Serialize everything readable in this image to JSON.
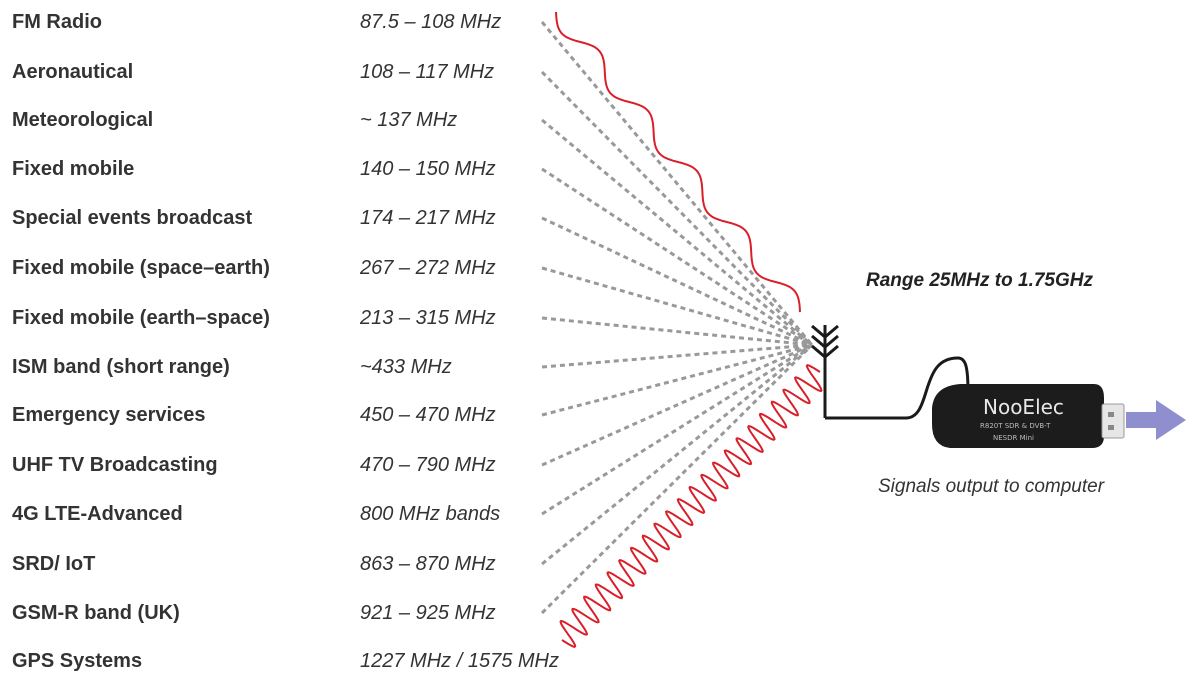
{
  "bands": [
    {
      "service": "FM Radio",
      "frequency": "87.5 – 108 MHz"
    },
    {
      "service": "Aeronautical",
      "frequency": "108 – 117 MHz"
    },
    {
      "service": "Meteorological",
      "frequency": "~ 137 MHz"
    },
    {
      "service": "Fixed mobile",
      "frequency": "140 – 150 MHz"
    },
    {
      "service": "Special events broadcast",
      "frequency": "174 – 217 MHz"
    },
    {
      "service": "Fixed mobile (space–earth)",
      "frequency": "267 – 272 MHz"
    },
    {
      "service": "Fixed mobile (earth–space)",
      "frequency": "213 – 315 MHz"
    },
    {
      "service": "ISM band (short range)",
      "frequency": "~433 MHz"
    },
    {
      "service": "Emergency services",
      "frequency": "450 – 470 MHz"
    },
    {
      "service": "UHF TV Broadcasting",
      "frequency": "470 – 790 MHz"
    },
    {
      "service": "4G LTE-Advanced",
      "frequency": "800 MHz bands"
    },
    {
      "service": "SRD/ IoT",
      "frequency": "863 – 870 MHz"
    },
    {
      "service": "GSM-R band (UK)",
      "frequency": "921 – 925 MHz"
    },
    {
      "service": "GPS Systems",
      "frequency": "1227 MHz / 1575 MHz"
    }
  ],
  "range_label": "Range 25MHz to 1.75GHz",
  "output_label": "Signals output to computer",
  "dongle": {
    "brand": "NooElec",
    "line1": "R820T SDR & DVB-T",
    "line2": "NESDR Mini"
  },
  "colors": {
    "wave": "#d9202a",
    "dashed_lines": "#999999",
    "arrow": "#8f8fd0",
    "dongle_body": "#1c1c1c",
    "antenna": "#1a1a1a"
  },
  "icons": {
    "antenna": "antenna-icon",
    "dongle": "usb-sdr-dongle",
    "arrow": "right-arrow-icon"
  }
}
